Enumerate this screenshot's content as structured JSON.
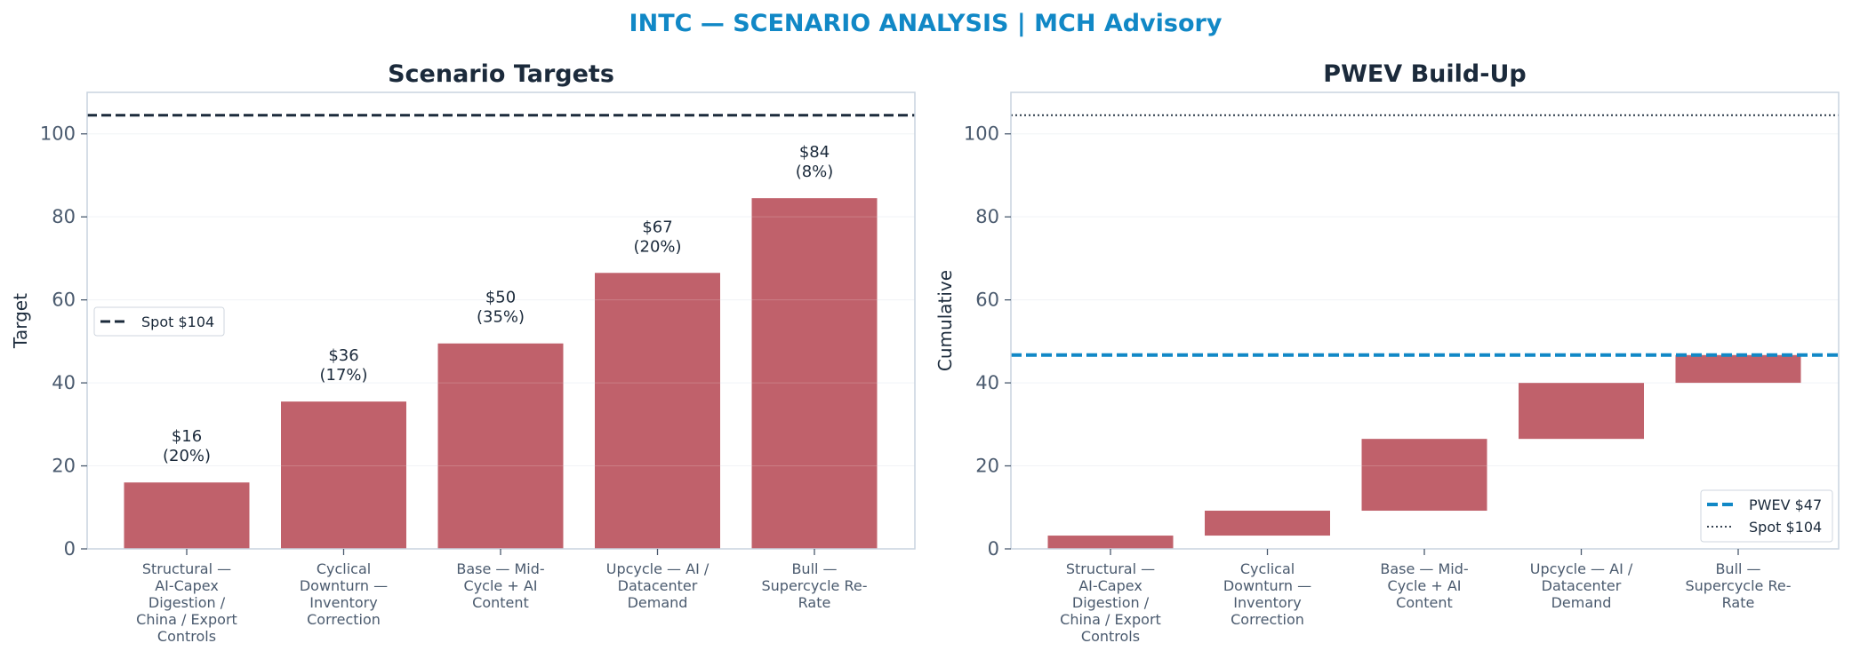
{
  "suptitle": "INTC — SCENARIO ANALYSIS | MCH Advisory",
  "colors": {
    "title": "#1188c6",
    "bar": "#c0616b",
    "spot_line": "#1b2a3b",
    "pwev_line": "#1188c6",
    "text": "#1b2a3b",
    "tick": "#4a5a6e",
    "frame": "#c9d3df",
    "grid": "#eef1f5"
  },
  "chart_data": [
    {
      "type": "bar",
      "title": "Scenario Targets",
      "xlabel": "",
      "ylabel": "Target",
      "ylim": [
        0,
        110
      ],
      "yticks": [
        0,
        20,
        40,
        60,
        80,
        100
      ],
      "grid": true,
      "categories": [
        "Structural — AI-Capex Digestion / China / Export Controls",
        "Cyclical Downturn — Inventory Correction",
        "Base — Mid-Cycle + AI Content",
        "Upcycle — AI / Datacenter Demand",
        "Bull — Supercycle Re-Rate"
      ],
      "category_lines": [
        [
          "Structural —",
          "AI-Capex",
          "Digestion /",
          "China / Export",
          "Controls"
        ],
        [
          "Cyclical",
          "Downturn —",
          "Inventory",
          "Correction"
        ],
        [
          "Base — Mid-",
          "Cycle + AI",
          "Content"
        ],
        [
          "Upcycle — AI /",
          "Datacenter",
          "Demand"
        ],
        [
          "Bull —",
          "Supercycle Re-",
          "Rate"
        ]
      ],
      "values": [
        16,
        35.5,
        49.5,
        66.5,
        84.5
      ],
      "labels": [
        [
          "$16",
          "(20%)"
        ],
        [
          "$36",
          "(17%)"
        ],
        [
          "$50",
          "(35%)"
        ],
        [
          "$67",
          "(20%)"
        ],
        [
          "$84",
          "(8%)"
        ]
      ],
      "reference_lines": [
        {
          "name": "Spot $104",
          "value": 104.5,
          "style": "dashed"
        }
      ],
      "legend_position": "center-left"
    },
    {
      "type": "waterfall",
      "title": "PWEV Build-Up",
      "xlabel": "",
      "ylabel": "Cumulative",
      "ylim": [
        0,
        110
      ],
      "yticks": [
        0,
        20,
        40,
        60,
        80,
        100
      ],
      "grid": true,
      "categories": [
        "Structural — AI-Capex Digestion / China / Export Controls",
        "Cyclical Downturn — Inventory Correction",
        "Base — Mid-Cycle + AI Content",
        "Upcycle — AI / Datacenter Demand",
        "Bull — Supercycle Re-Rate"
      ],
      "category_lines": [
        [
          "Structural —",
          "AI-Capex",
          "Digestion /",
          "China / Export",
          "Controls"
        ],
        [
          "Cyclical",
          "Downturn —",
          "Inventory",
          "Correction"
        ],
        [
          "Base — Mid-",
          "Cycle + AI",
          "Content"
        ],
        [
          "Upcycle — AI /",
          "Datacenter",
          "Demand"
        ],
        [
          "Bull —",
          "Supercycle Re-",
          "Rate"
        ]
      ],
      "bottoms": [
        0,
        3.2,
        9.2,
        26.5,
        40
      ],
      "tops": [
        3.2,
        9.2,
        26.5,
        40,
        46.7
      ],
      "reference_lines": [
        {
          "name": "PWEV $47",
          "value": 46.7,
          "style": "dashed"
        },
        {
          "name": "Spot $104",
          "value": 104.5,
          "style": "dotted"
        }
      ],
      "legend_position": "lower-right"
    }
  ]
}
